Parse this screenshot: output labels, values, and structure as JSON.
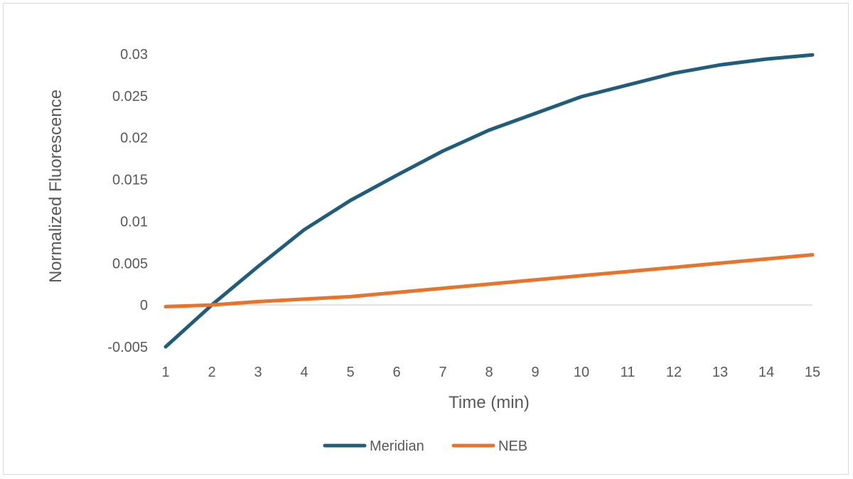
{
  "chart_data": {
    "type": "line",
    "title": "",
    "xlabel": "Time (min)",
    "ylabel": "Normalized Fluorescence",
    "x": [
      1,
      2,
      3,
      4,
      5,
      6,
      7,
      8,
      9,
      10,
      11,
      12,
      13,
      14,
      15
    ],
    "x_tick_labels": [
      "1",
      "2",
      "3",
      "4",
      "5",
      "6",
      "7",
      "8",
      "9",
      "10",
      "11",
      "12",
      "13",
      "14",
      "15"
    ],
    "y_tick_labels": [
      "-0.005",
      "0",
      "0.005",
      "0.01",
      "0.015",
      "0.02",
      "0.025",
      "0.03"
    ],
    "y_ticks": [
      -0.005,
      0,
      0.005,
      0.01,
      0.015,
      0.02,
      0.025,
      0.03
    ],
    "ylim": [
      -0.005,
      0.03
    ],
    "grid": false,
    "legend": "bottom",
    "series": [
      {
        "name": "Meridian",
        "color": "#1f5d7a",
        "values": [
          -0.005,
          0.0,
          0.0046,
          0.009,
          0.0125,
          0.0155,
          0.0184,
          0.0209,
          0.0229,
          0.0249,
          0.0263,
          0.0277,
          0.0287,
          0.0294,
          0.0299
        ]
      },
      {
        "name": "NEB",
        "color": "#e8732a",
        "values": [
          -0.0002,
          0.0,
          0.0004,
          0.0007,
          0.001,
          0.0015,
          0.002,
          0.0025,
          0.003,
          0.0035,
          0.004,
          0.0045,
          0.005,
          0.0055,
          0.006
        ]
      }
    ]
  }
}
